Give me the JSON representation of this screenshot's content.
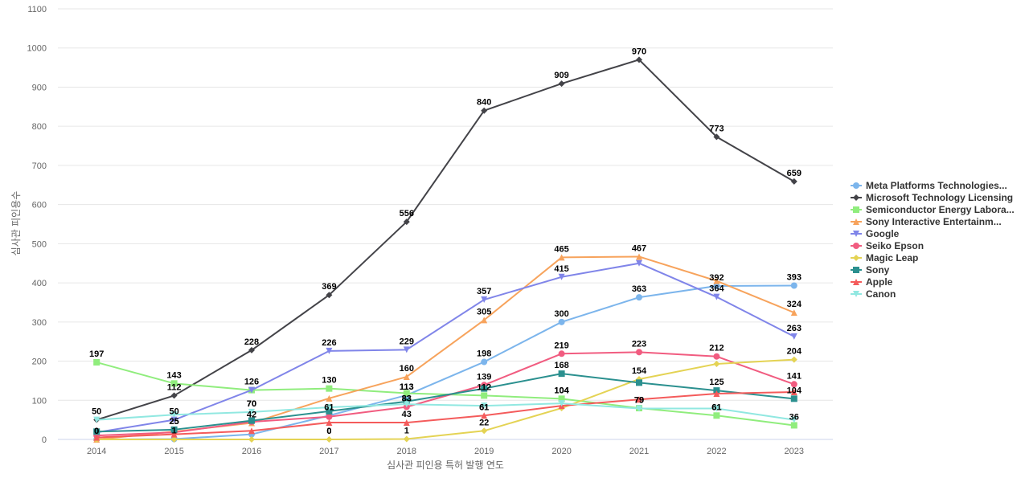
{
  "chart_data": {
    "type": "line",
    "xlabel": "심사관 피인용 특허 발행 연도",
    "ylabel": "심사관 피인용수",
    "ylim": [
      0,
      1100
    ],
    "yticks": [
      0,
      100,
      200,
      300,
      400,
      500,
      600,
      700,
      800,
      900,
      1000,
      1100
    ],
    "grid": "horizontal",
    "legend": "right",
    "x": [
      "2014",
      "2015",
      "2016",
      "2017",
      "2018",
      "2019",
      "2020",
      "2021",
      "2022",
      "2023"
    ],
    "series": [
      {
        "name": "Meta Platforms Technologies...",
        "color": "#7cb5ec",
        "marker": "circle",
        "values": [
          0,
          1,
          13,
          61,
          113,
          198,
          300,
          363,
          392,
          393
        ],
        "labeled": [
          false,
          false,
          false,
          false,
          true,
          true,
          true,
          true,
          true,
          true
        ]
      },
      {
        "name": "Microsoft Technology Licensing",
        "color": "#434348",
        "marker": "diamond",
        "values": [
          50,
          112,
          228,
          369,
          556,
          840,
          909,
          970,
          773,
          659
        ],
        "labeled": [
          true,
          true,
          true,
          true,
          true,
          true,
          true,
          true,
          true,
          true
        ]
      },
      {
        "name": "Semiconductor Energy Labora...",
        "color": "#90ed7d",
        "marker": "square",
        "values": [
          197,
          143,
          126,
          130,
          118,
          112,
          104,
          80,
          61,
          36
        ],
        "labeled": [
          true,
          true,
          true,
          true,
          false,
          false,
          true,
          false,
          true,
          true
        ]
      },
      {
        "name": "Sony Interactive Entertainm...",
        "color": "#f7a35c",
        "marker": "triangle",
        "values": [
          0,
          20,
          42,
          105,
          160,
          305,
          465,
          467,
          405,
          324
        ],
        "labeled": [
          true,
          false,
          true,
          false,
          true,
          true,
          true,
          true,
          false,
          true
        ]
      },
      {
        "name": "Google",
        "color": "#8085e9",
        "marker": "triangle-down",
        "values": [
          18,
          50,
          126,
          226,
          229,
          357,
          415,
          450,
          364,
          263
        ],
        "labeled": [
          false,
          true,
          false,
          true,
          true,
          true,
          true,
          false,
          true,
          true
        ]
      },
      {
        "name": "Seiko Epson",
        "color": "#f15c80",
        "marker": "circle",
        "values": [
          10,
          18,
          45,
          58,
          83,
          139,
          219,
          223,
          212,
          141
        ],
        "labeled": [
          false,
          false,
          false,
          false,
          true,
          true,
          true,
          true,
          true,
          true
        ]
      },
      {
        "name": "Magic Leap",
        "color": "#e4d354",
        "marker": "diamond",
        "values": [
          0,
          0,
          0,
          0,
          1,
          22,
          80,
          154,
          193,
          204
        ],
        "labeled": [
          false,
          false,
          false,
          true,
          true,
          true,
          false,
          true,
          false,
          true
        ]
      },
      {
        "name": "Sony",
        "color": "#2b908f",
        "marker": "square",
        "values": [
          20,
          25,
          48,
          72,
          97,
          130,
          168,
          145,
          125,
          104
        ],
        "labeled": [
          false,
          true,
          false,
          false,
          false,
          false,
          true,
          false,
          true,
          true
        ]
      },
      {
        "name": "Apple",
        "color": "#f45b5b",
        "marker": "triangle",
        "values": [
          5,
          13,
          22,
          43,
          43,
          61,
          86,
          102,
          117,
          121
        ],
        "labeled": [
          false,
          false,
          false,
          false,
          true,
          true,
          false,
          false,
          false,
          false
        ]
      },
      {
        "name": "Canon",
        "color": "#91e8e1",
        "marker": "triangle-down",
        "values": [
          50,
          63,
          70,
          82,
          90,
          86,
          92,
          79,
          79,
          50
        ],
        "labeled": [
          false,
          false,
          true,
          false,
          false,
          false,
          false,
          true,
          false,
          false
        ]
      }
    ],
    "annotations": [
      {
        "x": "2014",
        "label": "0"
      },
      {
        "x": "2015",
        "label": "25"
      },
      {
        "x": "2015",
        "label": "1"
      },
      {
        "x": "2016",
        "label": "70"
      },
      {
        "x": "2017",
        "label": "61"
      },
      {
        "x": "2017",
        "label": "0"
      },
      {
        "x": "2018",
        "label": "113"
      },
      {
        "x": "2018",
        "label": "83"
      },
      {
        "x": "2019",
        "label": "112"
      },
      {
        "x": "2019",
        "label": "61"
      },
      {
        "x": "2020",
        "label": "104"
      },
      {
        "x": "2021",
        "label": "79"
      },
      {
        "x": "2022",
        "label": "61"
      }
    ]
  }
}
